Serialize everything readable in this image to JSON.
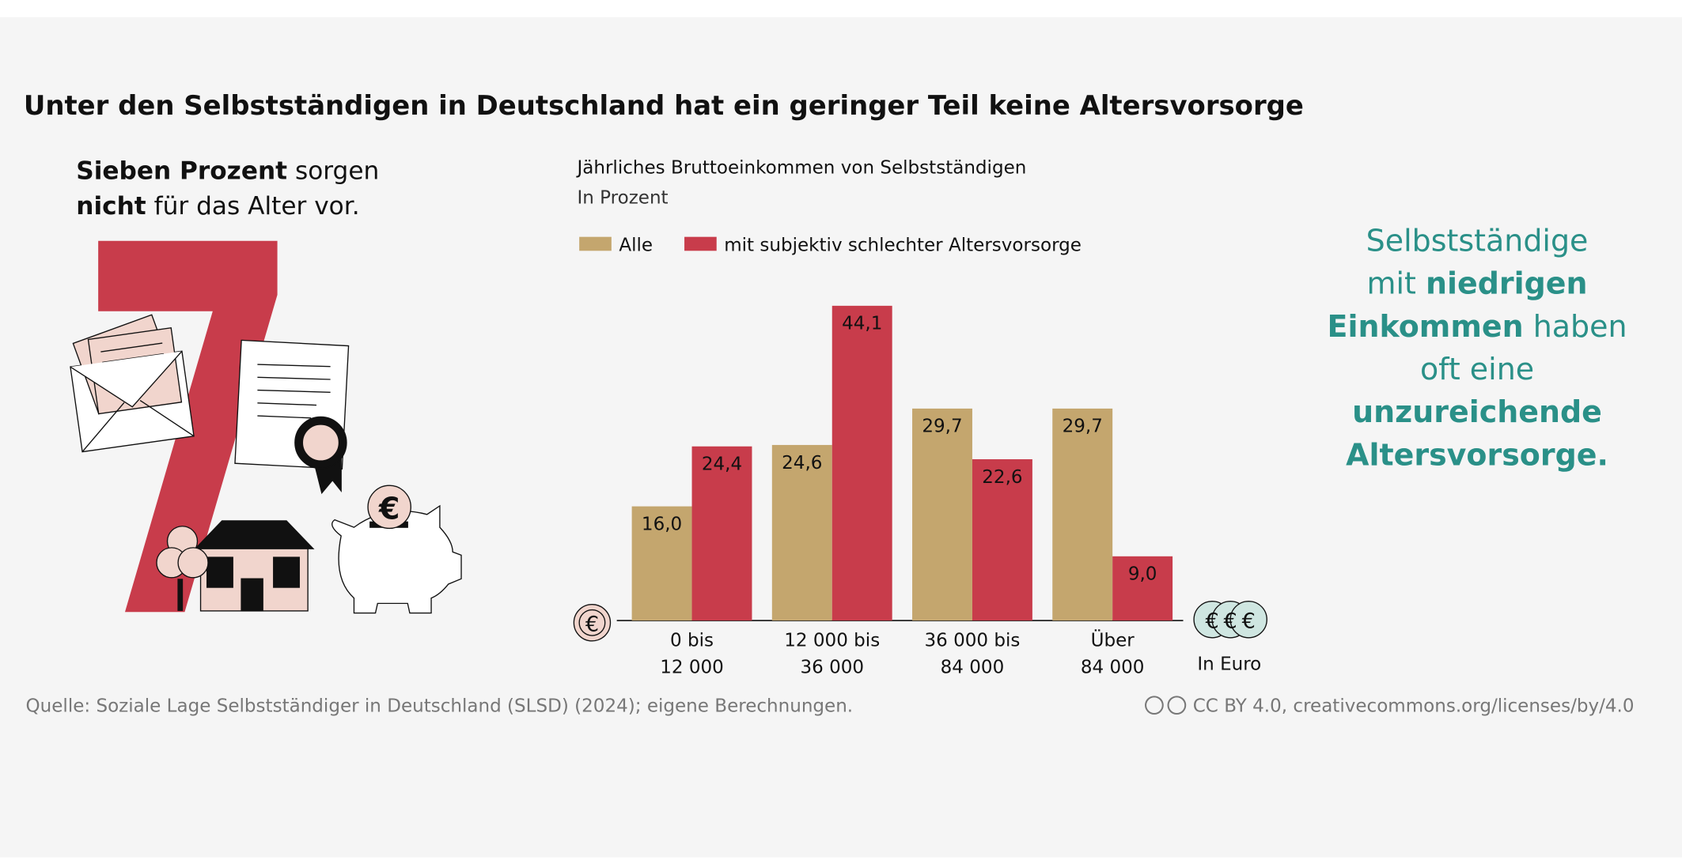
{
  "chart_data": {
    "type": "bar",
    "title": "Unter den Selbstständigen in Deutschland hat ein geringer Teil keine Altersvorsorge",
    "big_number": "7",
    "headline": [
      [
        {
          "text": "Sieben Prozent",
          "bold": true
        },
        {
          "text": " sorgen"
        }
      ],
      [
        {
          "text": "nicht",
          "bold": true
        },
        {
          "text": " für das Alter vor."
        }
      ]
    ],
    "chart_title": "Jährliches Bruttoeinkommen von Selbstständigen",
    "chart_subtitle": "In Prozent",
    "categories": [
      [
        "0 bis",
        "12 000"
      ],
      [
        "12 000 bis",
        "36 000"
      ],
      [
        "36 000 bis",
        "84 000"
      ],
      [
        "Über",
        "84 000"
      ]
    ],
    "x_label": "In Euro",
    "currency_symbol": "€",
    "series": [
      {
        "name": "Alle",
        "color": "#c4a66e",
        "values": [
          16.0,
          24.6,
          29.7,
          29.7
        ],
        "value_labels": [
          "16,0",
          "24,6",
          "29,7",
          "29,7"
        ]
      },
      {
        "name": "mit subjektiv schlechter Altersvorsorge",
        "color": "#c83c4b",
        "values": [
          24.4,
          44.1,
          22.6,
          9.0
        ],
        "value_labels": [
          "24,4",
          "44,1",
          "22,6",
          "9,0"
        ]
      }
    ],
    "ylim": [
      0,
      50
    ],
    "callout": [
      [
        {
          "text": "Selbstständige"
        }
      ],
      [
        {
          "text": "mit "
        },
        {
          "text": "niedrigen",
          "bold": true
        }
      ],
      [
        {
          "text": "Einkommen",
          "bold": true
        },
        {
          "text": " haben"
        }
      ],
      [
        {
          "text": "oft eine"
        }
      ],
      [
        {
          "text": "unzureichende",
          "bold": true
        }
      ],
      [
        {
          "text": "Altersvorsorge.",
          "bold": true
        }
      ]
    ],
    "callout_color": "#2a9088",
    "source": "Quelle: Soziale Lage Selbstständiger in Deutschland (SLSD) (2024); eigene Berechnungen.",
    "license": "CC BY 4.0, creativecommons.org/licenses/by/4.0"
  }
}
